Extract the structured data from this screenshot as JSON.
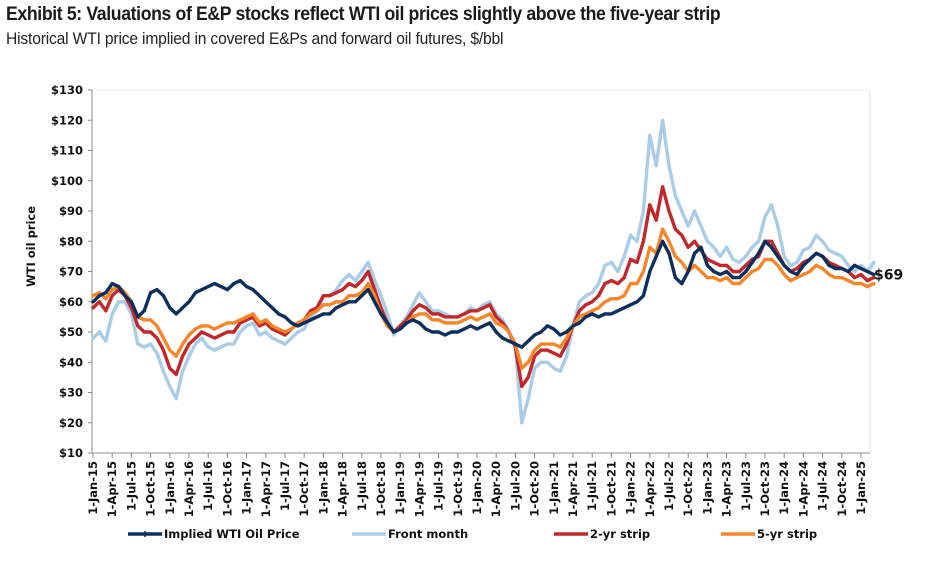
{
  "header": {
    "title": "Exhibit 5: Valuations of E&P stocks reflect WTI oil prices slightly above the five-year strip",
    "subtitle": "Historical WTI price implied in covered E&Ps and forward oil futures, $/bbl"
  },
  "chart_data": {
    "type": "line",
    "title": "Exhibit 5: Valuations of E&P stocks reflect WTI oil prices slightly above the five-year strip",
    "subtitle": "Historical WTI price implied in covered E&Ps and forward oil futures, $/bbl",
    "xlabel": "",
    "ylabel": "WTI oil price",
    "ylim": [
      10,
      130
    ],
    "yticks": [
      10,
      20,
      30,
      40,
      50,
      60,
      70,
      80,
      90,
      100,
      110,
      120,
      130
    ],
    "ytick_labels": [
      "$10",
      "$20",
      "$30",
      "$40",
      "$50",
      "$60",
      "$70",
      "$80",
      "$90",
      "$100",
      "$110",
      "$120",
      "$130"
    ],
    "x_start": "2015-01",
    "x_frequency": "monthly",
    "xlim_months": [
      0,
      122
    ],
    "xtick_labels": [
      "1-Jan-15",
      "1-Apr-15",
      "1-Jul-15",
      "1-Oct-15",
      "1-Jan-16",
      "1-Apr-16",
      "1-Jul-16",
      "1-Oct-16",
      "1-Jan-17",
      "1-Apr-17",
      "1-Jul-17",
      "1-Oct-17",
      "1-Jan-18",
      "1-Apr-18",
      "1-Jul-18",
      "1-Oct-18",
      "1-Jan-19",
      "1-Apr-19",
      "1-Jul-19",
      "1-Oct-19",
      "1-Jan-20",
      "1-Apr-20",
      "1-Jul-20",
      "1-Oct-20",
      "1-Jan-21",
      "1-Apr-21",
      "1-Jul-21",
      "1-Oct-21",
      "1-Jan-22",
      "1-Apr-22",
      "1-Jul-22",
      "1-Oct-22",
      "1-Jan-23",
      "1-Apr-23",
      "1-Jul-23",
      "1-Oct-23",
      "1-Jan-24",
      "1-Apr-24",
      "1-Jul-24",
      "1-Oct-24",
      "1-Jan-25"
    ],
    "grid": false,
    "legend_position": "bottom",
    "end_annotation": "$69",
    "series": [
      {
        "name": "Front month",
        "color": "#a9cce8",
        "values": [
          48,
          50,
          47,
          56,
          60,
          60,
          56,
          46,
          45,
          46,
          43,
          37,
          32,
          28,
          37,
          42,
          46,
          48,
          45,
          44,
          45,
          46,
          46,
          50,
          52,
          53,
          49,
          50,
          48,
          47,
          46,
          48,
          50,
          51,
          55,
          57,
          62,
          62,
          64,
          67,
          69,
          67,
          70,
          73,
          67,
          62,
          56,
          49,
          52,
          55,
          59,
          63,
          60,
          57,
          57,
          56,
          55,
          55,
          56,
          58,
          57,
          59,
          60,
          56,
          54,
          50,
          45,
          20,
          28,
          38,
          40,
          40,
          38,
          37,
          42,
          52,
          60,
          62,
          63,
          66,
          72,
          73,
          70,
          75,
          82,
          80,
          90,
          115,
          105,
          120,
          105,
          95,
          90,
          85,
          90,
          85,
          80,
          78,
          75,
          78,
          74,
          73,
          75,
          78,
          80,
          88,
          92,
          85,
          75,
          72,
          73,
          77,
          78,
          82,
          80,
          77,
          76,
          75,
          72,
          70,
          72,
          70,
          73
        ]
      },
      {
        "name": "2-yr strip",
        "color": "#c0282c",
        "values": [
          58,
          60,
          57,
          62,
          64,
          62,
          58,
          52,
          50,
          50,
          48,
          44,
          38,
          36,
          42,
          46,
          48,
          50,
          49,
          48,
          49,
          50,
          50,
          53,
          54,
          55,
          52,
          53,
          51,
          50,
          49,
          51,
          53,
          54,
          57,
          58,
          62,
          62,
          63,
          64,
          66,
          65,
          67,
          70,
          64,
          58,
          53,
          50,
          52,
          54,
          57,
          59,
          58,
          56,
          56,
          55,
          55,
          55,
          56,
          57,
          57,
          58,
          59,
          55,
          53,
          50,
          45,
          32,
          35,
          42,
          44,
          44,
          43,
          42,
          46,
          52,
          57,
          59,
          60,
          62,
          66,
          67,
          66,
          68,
          74,
          73,
          80,
          92,
          87,
          98,
          90,
          84,
          82,
          78,
          80,
          77,
          74,
          73,
          72,
          72,
          70,
          70,
          72,
          74,
          75,
          80,
          80,
          76,
          72,
          70,
          71,
          73,
          74,
          76,
          75,
          73,
          72,
          71,
          70,
          68,
          69,
          67,
          68
        ]
      },
      {
        "name": "5-yr strip",
        "color": "#f5862a",
        "values": [
          62,
          63,
          61,
          64,
          65,
          63,
          60,
          55,
          54,
          54,
          52,
          48,
          44,
          42,
          46,
          49,
          51,
          52,
          52,
          51,
          52,
          53,
          53,
          54,
          55,
          56,
          53,
          54,
          52,
          51,
          50,
          51,
          53,
          54,
          56,
          57,
          59,
          59,
          60,
          60,
          62,
          62,
          63,
          66,
          62,
          56,
          52,
          50,
          51,
          53,
          55,
          56,
          56,
          54,
          54,
          53,
          53,
          53,
          54,
          55,
          54,
          55,
          56,
          53,
          52,
          50,
          46,
          38,
          40,
          44,
          46,
          46,
          46,
          45,
          48,
          52,
          55,
          56,
          57,
          58,
          60,
          61,
          61,
          62,
          66,
          66,
          70,
          78,
          76,
          84,
          80,
          75,
          73,
          70,
          72,
          70,
          68,
          68,
          67,
          68,
          66,
          66,
          68,
          70,
          71,
          74,
          74,
          72,
          69,
          67,
          68,
          69,
          70,
          72,
          71,
          69,
          68,
          68,
          67,
          66,
          66,
          65,
          66
        ]
      },
      {
        "name": "Implied WTI Oil Price",
        "color": "#0d2f5e",
        "values": [
          60,
          62,
          63,
          66,
          65,
          62,
          60,
          55,
          57,
          63,
          64,
          62,
          58,
          56,
          58,
          60,
          63,
          64,
          65,
          66,
          65,
          64,
          66,
          67,
          65,
          64,
          62,
          60,
          58,
          56,
          55,
          53,
          52,
          53,
          54,
          55,
          56,
          56,
          58,
          59,
          60,
          60,
          62,
          64,
          60,
          56,
          53,
          50,
          51,
          53,
          54,
          53,
          51,
          50,
          50,
          49,
          50,
          50,
          51,
          52,
          51,
          52,
          53,
          50,
          48,
          47,
          46,
          45,
          47,
          49,
          50,
          52,
          51,
          49,
          50,
          52,
          53,
          55,
          56,
          55,
          56,
          56,
          57,
          58,
          59,
          60,
          62,
          70,
          75,
          80,
          76,
          68,
          66,
          70,
          76,
          78,
          72,
          70,
          69,
          70,
          68,
          68,
          70,
          73,
          76,
          80,
          78,
          75,
          72,
          70,
          69,
          72,
          74,
          76,
          75,
          72,
          71,
          71,
          70,
          72,
          71,
          70,
          69
        ]
      }
    ]
  },
  "legend": [
    {
      "label": "Implied WTI Oil Price",
      "color": "#0d2f5e",
      "marker": true
    },
    {
      "label": "Front month",
      "color": "#a9cce8",
      "marker": false
    },
    {
      "label": "2-yr strip",
      "color": "#c0282c",
      "marker": false
    },
    {
      "label": "5-yr strip",
      "color": "#f5862a",
      "marker": false
    }
  ]
}
